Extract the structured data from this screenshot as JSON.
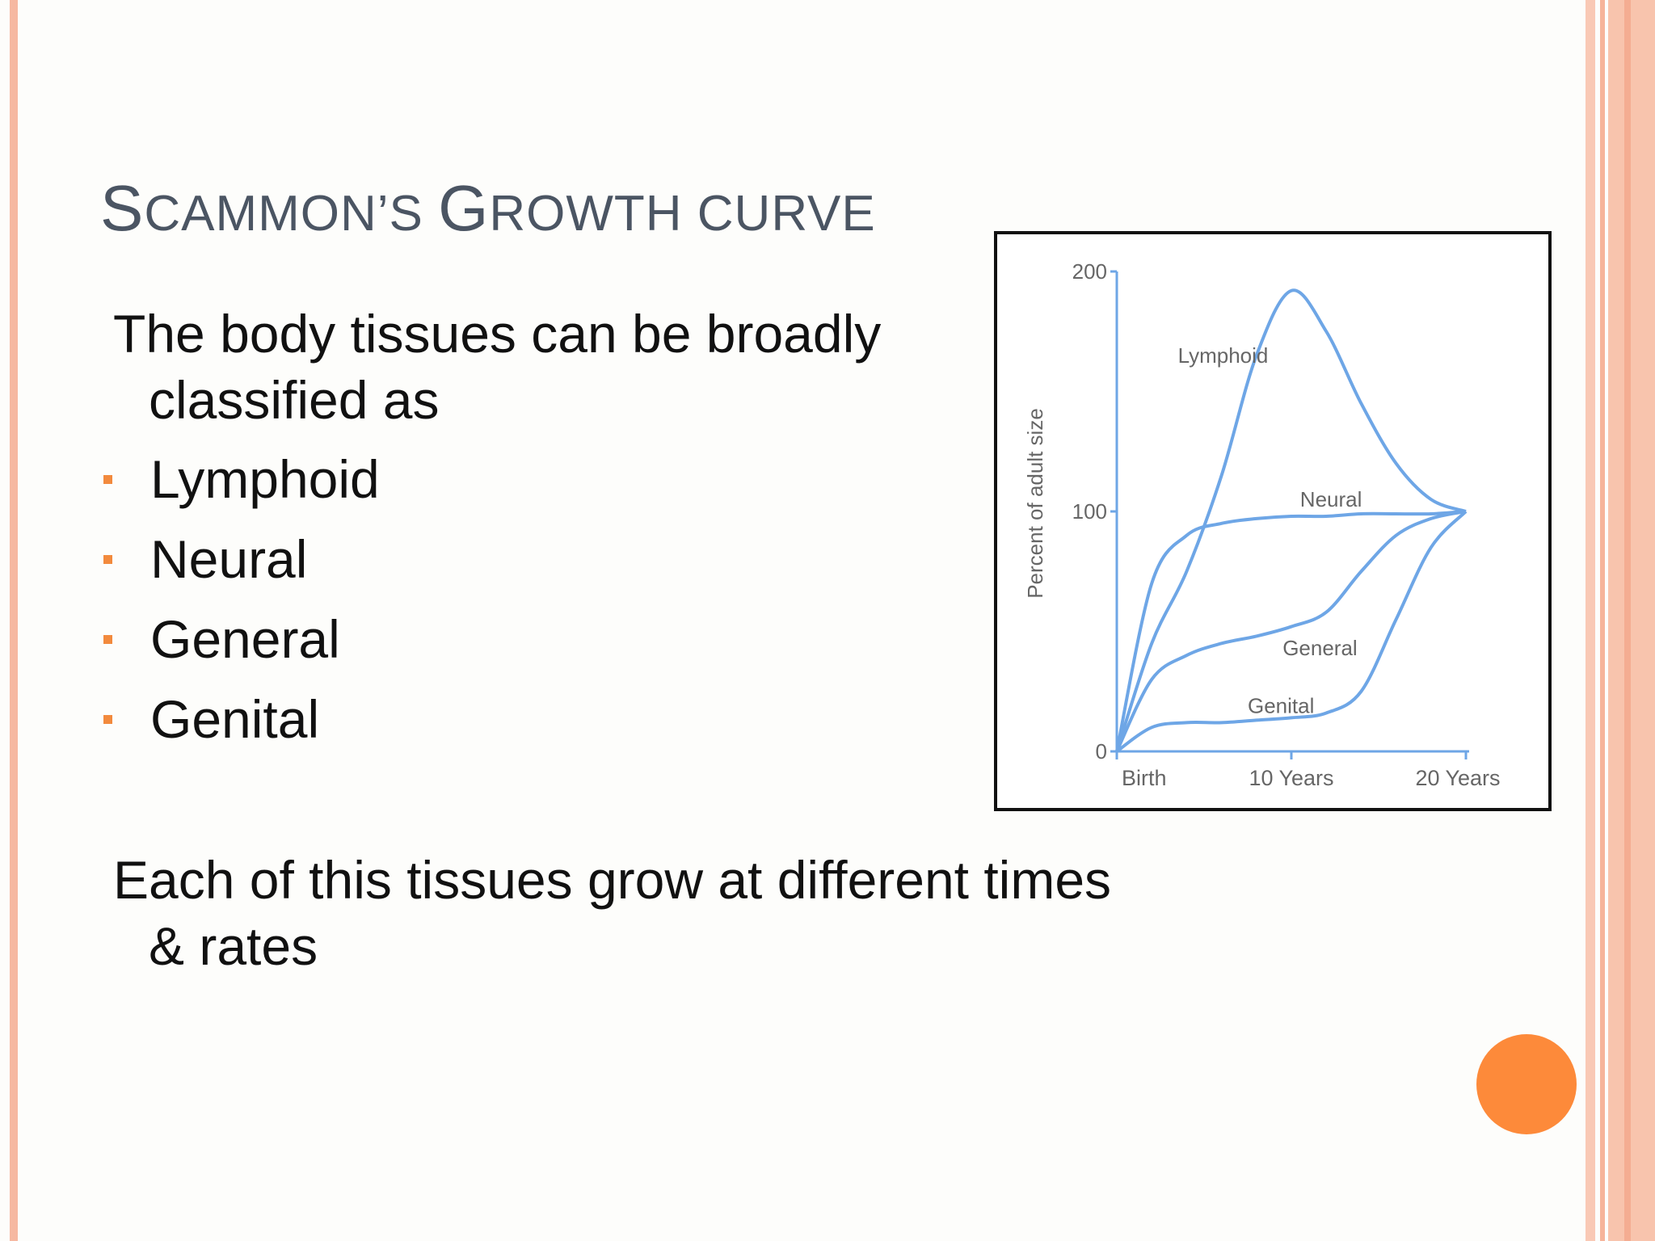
{
  "slide": {
    "title_parts": [
      {
        "text": "S",
        "size": "big"
      },
      {
        "text": "CAMMON’S ",
        "size": "small"
      },
      {
        "text": "G",
        "size": "big"
      },
      {
        "text": "ROWTH CURVE",
        "size": "small"
      }
    ],
    "intro_line1": "The body tissues can be broadly",
    "intro_line2": "classified as",
    "bullets": [
      "Lymphoid",
      "Neural",
      "General",
      "Genital"
    ],
    "outro_line1": "Each of this tissues grow at different times",
    "outro_line2": "& rates",
    "colors": {
      "accent": "#f28a3d",
      "orb": "#fd8a3a",
      "curve": "#6ea6e6",
      "title": "#4b5563"
    }
  },
  "chart_data": {
    "type": "line",
    "ylabel": "Percent of adult size",
    "xlabel": "",
    "y_ticks": [
      "0",
      "100",
      "200"
    ],
    "x_ticks": [
      "Birth",
      "10 Years",
      "20 Years"
    ],
    "xlim": [
      0,
      20
    ],
    "ylim": [
      0,
      200
    ],
    "series": [
      {
        "name": "Lymphoid",
        "x": [
          0,
          2,
          4,
          6,
          8,
          10,
          12,
          14,
          16,
          18,
          20
        ],
        "y": [
          0,
          45,
          75,
          115,
          165,
          192,
          175,
          145,
          120,
          105,
          100
        ]
      },
      {
        "name": "Neural",
        "x": [
          0,
          2,
          4,
          6,
          8,
          10,
          12,
          14,
          16,
          18,
          20
        ],
        "y": [
          0,
          70,
          90,
          95,
          97,
          98,
          98,
          99,
          99,
          99,
          100
        ]
      },
      {
        "name": "General",
        "x": [
          0,
          2,
          4,
          6,
          8,
          10,
          12,
          14,
          16,
          18,
          20
        ],
        "y": [
          0,
          30,
          40,
          45,
          48,
          52,
          58,
          75,
          90,
          97,
          100
        ]
      },
      {
        "name": "Genital",
        "x": [
          0,
          2,
          4,
          6,
          8,
          10,
          12,
          14,
          16,
          18,
          20
        ],
        "y": [
          0,
          10,
          12,
          12,
          13,
          14,
          16,
          25,
          55,
          85,
          100
        ]
      }
    ]
  }
}
